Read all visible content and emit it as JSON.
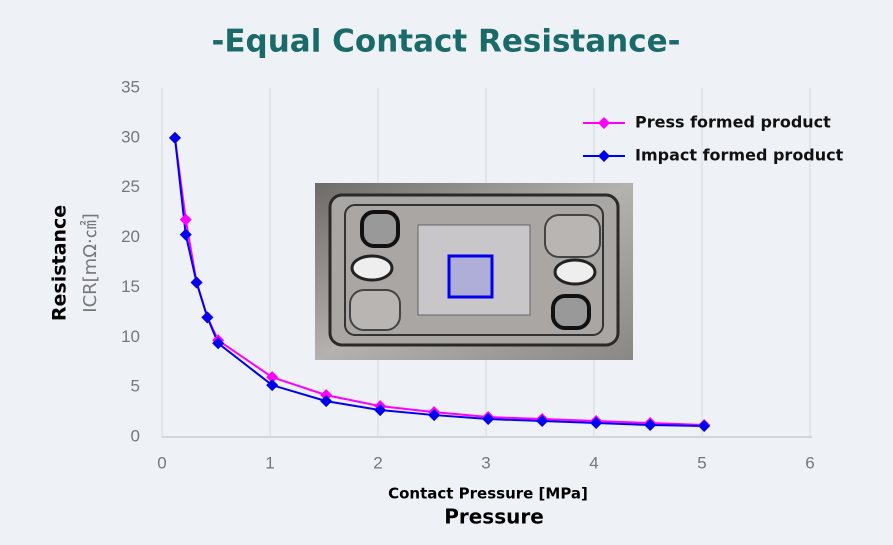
{
  "chart_data": {
    "type": "line",
    "title": "-Equal Contact Resistance-",
    "x_label": "Contact Pressure [MPa]",
    "x_label_sub": "Pressure",
    "y_label": "Resistance",
    "y_label_sub": "ICR[mΩ·㎠]",
    "x": [
      0.12,
      0.22,
      0.32,
      0.42,
      0.52,
      1.02,
      1.52,
      2.02,
      2.52,
      3.02,
      3.52,
      4.02,
      4.52,
      5.02
    ],
    "series": [
      {
        "name": "Press formed product",
        "color": "#ff00ff",
        "values": [
          30,
          21.8,
          15.5,
          12,
          9.7,
          6,
          4.2,
          3.1,
          2.5,
          2,
          1.8,
          1.6,
          1.4,
          1.2
        ]
      },
      {
        "name": "Impact formed product",
        "color": "#0000ee",
        "values": [
          30,
          20.3,
          15.5,
          12,
          9.4,
          5.2,
          3.6,
          2.7,
          2.2,
          1.8,
          1.6,
          1.4,
          1.2,
          1.1
        ]
      }
    ],
    "xlim": [
      0,
      6
    ],
    "xticks": [
      0,
      1,
      2,
      3,
      4,
      5,
      6
    ],
    "ylim": [
      0,
      35
    ],
    "yticks": [
      0,
      5,
      10,
      15,
      20,
      25,
      30,
      35
    ],
    "grid": "x",
    "legend": "upper right"
  }
}
